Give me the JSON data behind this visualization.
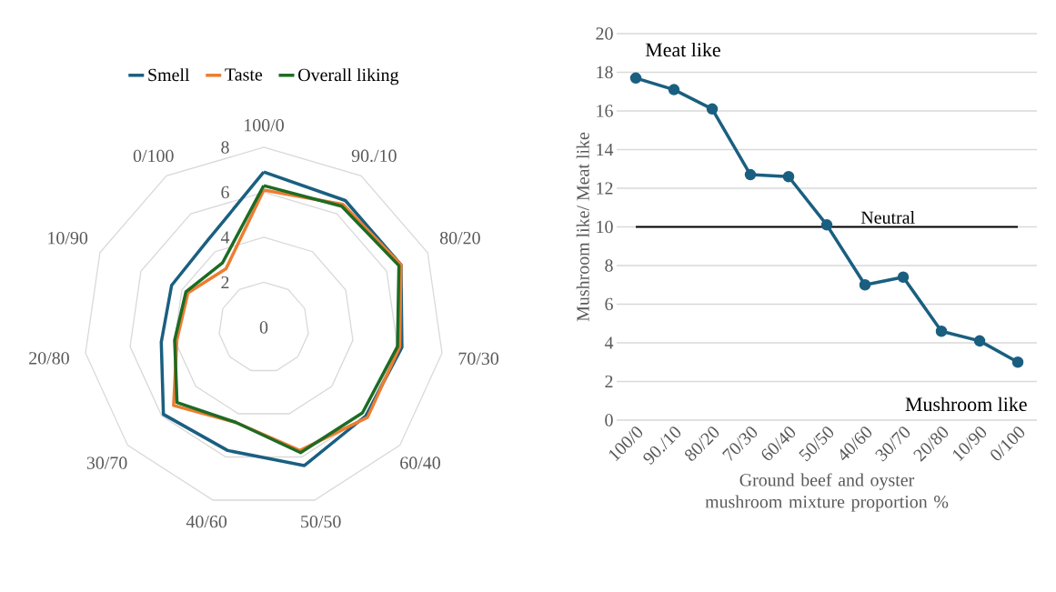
{
  "chart_data": [
    {
      "type": "radar",
      "categories": [
        "100/0",
        "90./10",
        "80/20",
        "70/30",
        "60/40",
        "50/50",
        "40/60",
        "30/70",
        "20/80",
        "10/90",
        "0/100"
      ],
      "ylim": [
        0,
        8
      ],
      "yticks": [
        0,
        2,
        4,
        6,
        8
      ],
      "legend": "top",
      "series": [
        {
          "name": "Smell",
          "color": "#1a5f80",
          "values": [
            6.9,
            6.7,
            6.7,
            6.2,
            6.0,
            6.4,
            5.7,
            5.9,
            4.6,
            4.5,
            4.6
          ]
        },
        {
          "name": "Taste",
          "color": "#ed7d31",
          "values": [
            6.1,
            6.5,
            6.7,
            6.1,
            6.1,
            5.7,
            4.4,
            5.3,
            3.9,
            3.7,
            3.1
          ]
        },
        {
          "name": "Overall liking",
          "color": "#1e6b24",
          "values": [
            6.3,
            6.4,
            6.6,
            6.0,
            5.8,
            5.8,
            4.4,
            5.1,
            4.0,
            3.8,
            3.4
          ]
        }
      ]
    },
    {
      "type": "line",
      "categories": [
        "100/0",
        "90./10",
        "80/20",
        "70/30",
        "60/40",
        "50/50",
        "40/60",
        "30/70",
        "20/80",
        "10/90",
        "0/100"
      ],
      "values": [
        17.7,
        17.1,
        16.1,
        12.7,
        12.6,
        10.1,
        7.0,
        7.4,
        4.6,
        4.1,
        3.0
      ],
      "color": "#1a5f80",
      "xlabel": "Ground beef and oyster mushroom mixture proportion %",
      "ylabel": "Mushroom like/ Meat like",
      "ylim": [
        0,
        20
      ],
      "yticks": [
        0,
        2,
        4,
        6,
        8,
        10,
        12,
        14,
        16,
        18,
        20
      ],
      "grid": "y",
      "marker": "circle",
      "ref_lines": [
        {
          "axis": "y",
          "value": 10,
          "label": "Neutral",
          "color": "#000000"
        }
      ],
      "annotations": [
        "Meat like",
        "Mushroom like"
      ]
    }
  ]
}
